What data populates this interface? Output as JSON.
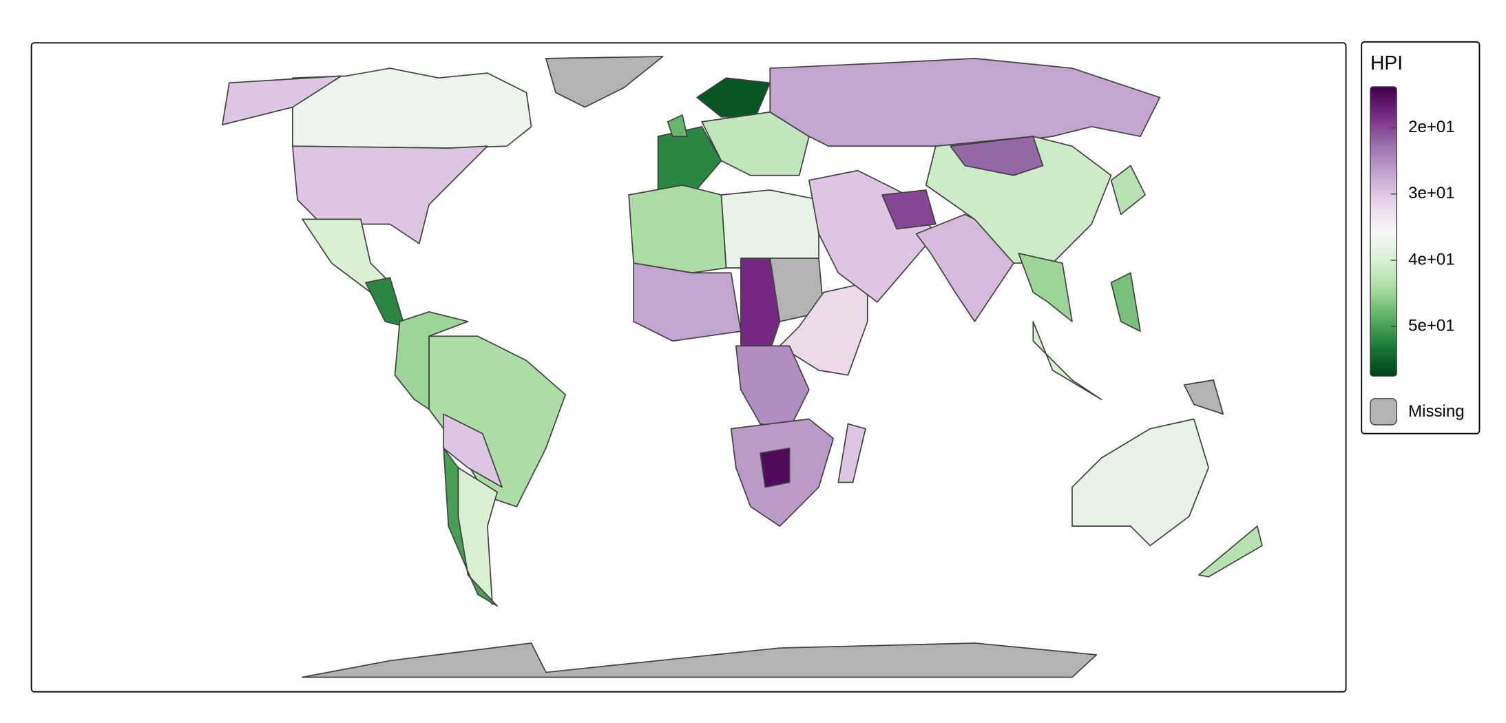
{
  "chart_data": {
    "type": "choropleth",
    "legend_title": "HPI",
    "values": [
      37,
      30,
      30,
      null,
      40,
      52,
      44,
      45,
      30,
      40,
      50,
      52,
      56,
      42,
      27,
      44,
      38,
      27,
      18,
      null,
      32,
      25,
      26,
      15,
      30,
      30,
      20,
      29,
      41,
      22,
      45,
      40,
      43,
      47,
      38,
      43,
      null,
      null,
      48
    ],
    "ylim": [
      13.8,
      57.5
    ],
    "yticks": [
      {
        "value": 20,
        "label": "2e+01"
      },
      {
        "value": 30,
        "label": "3e+01"
      },
      {
        "value": 40,
        "label": "4e+01"
      },
      {
        "value": 50,
        "label": "5e+01"
      }
    ],
    "colors": [
      "#40004b",
      "#762a83",
      "#9970ab",
      "#c2a5cf",
      "#e7d4e8",
      "#f7f7f7",
      "#d9f0d3",
      "#a6dba0",
      "#5aae61",
      "#1b7837",
      "#00441b"
    ],
    "missing_label": "Missing",
    "missing_color": "#b3b3b3",
    "border_color": "#404040"
  }
}
